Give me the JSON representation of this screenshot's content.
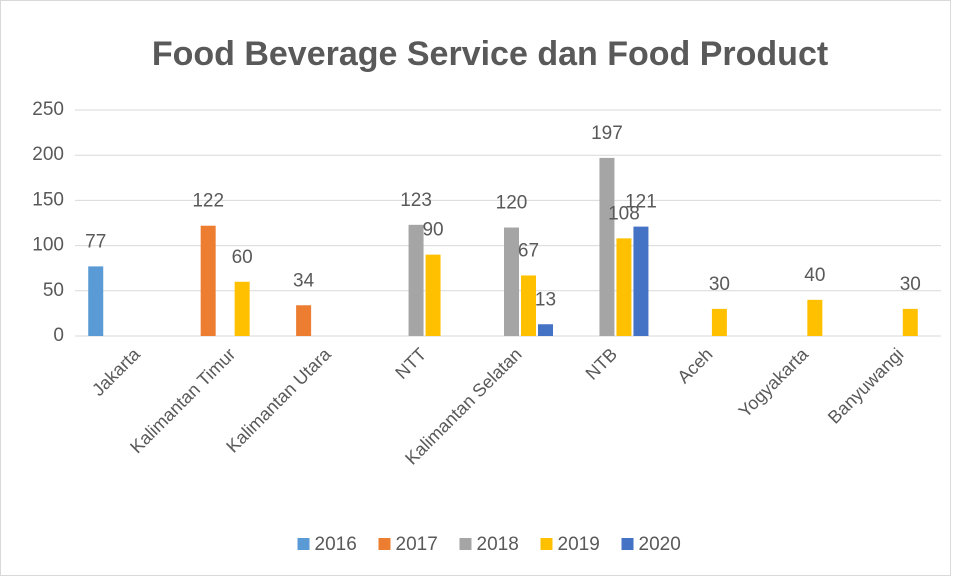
{
  "chart_data": {
    "type": "bar",
    "title": "Food Beverage Service dan Food Product",
    "categories": [
      "Jakarta",
      "Kalimantan Timur",
      "Kalimantan Utara",
      "NTT",
      "Kalimantan Selatan",
      "NTB",
      "Aceh",
      "Yogyakarta",
      "Banyuwangi"
    ],
    "series": [
      {
        "name": "2016",
        "color": "#5b9bd5",
        "values": [
          77,
          null,
          null,
          null,
          null,
          null,
          null,
          null,
          null
        ]
      },
      {
        "name": "2017",
        "color": "#ed7d31",
        "values": [
          null,
          122,
          34,
          null,
          null,
          null,
          null,
          null,
          null
        ]
      },
      {
        "name": "2018",
        "color": "#a5a5a5",
        "values": [
          null,
          null,
          null,
          123,
          120,
          197,
          null,
          null,
          null
        ]
      },
      {
        "name": "2019",
        "color": "#ffc000",
        "values": [
          null,
          60,
          null,
          90,
          67,
          108,
          30,
          40,
          30
        ]
      },
      {
        "name": "2020",
        "color": "#4472c4",
        "values": [
          null,
          null,
          null,
          null,
          13,
          121,
          null,
          null,
          null
        ]
      }
    ],
    "ylim": [
      0,
      250
    ],
    "yticks": [
      0,
      50,
      100,
      150,
      200,
      250
    ],
    "grid": true,
    "legend": "bottom"
  }
}
